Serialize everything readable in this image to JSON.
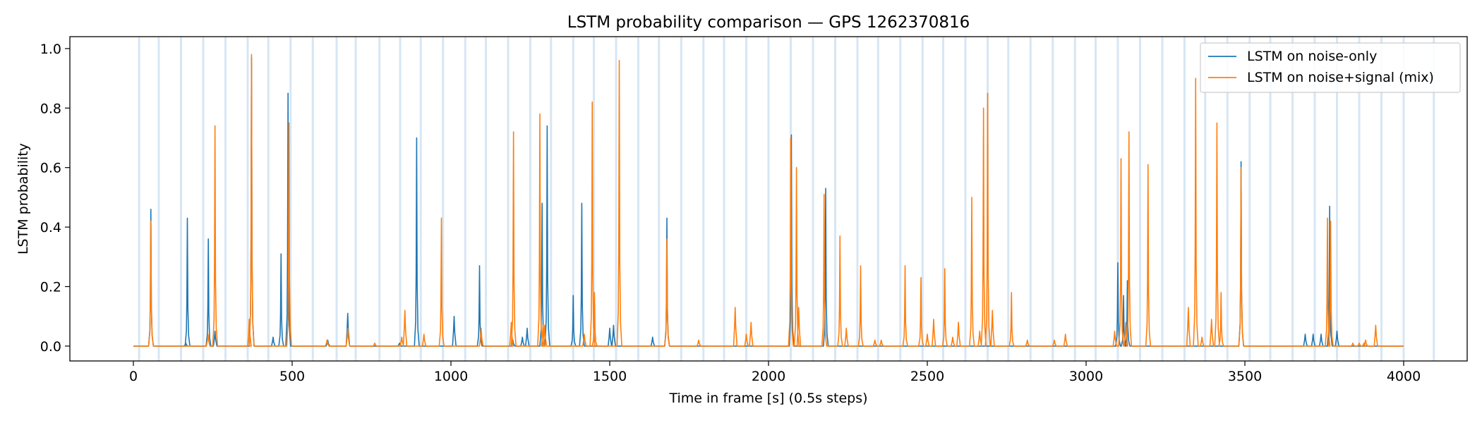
{
  "chart_data": {
    "type": "line",
    "title": "LSTM probability comparison — GPS 1262370816",
    "xlabel": "Time in frame [s] (0.5s steps)",
    "ylabel": "LSTM probability",
    "xlim": [
      -200,
      4200
    ],
    "ylim": [
      -0.05,
      1.04
    ],
    "xticks": [
      0,
      500,
      1000,
      1500,
      2000,
      2500,
      3000,
      3500,
      4000
    ],
    "yticks": [
      0.0,
      0.2,
      0.4,
      0.6,
      0.8,
      1.0
    ],
    "xtick_labels": [
      "0",
      "500",
      "1000",
      "1500",
      "2000",
      "2500",
      "3000",
      "3500",
      "4000"
    ],
    "ytick_labels": [
      "0.0",
      "0.2",
      "0.4",
      "0.6",
      "0.8",
      "1.0"
    ],
    "legend_position": "top-right",
    "background_bands_color": "#c6dbef",
    "background_bands": [
      18,
      80,
      150,
      220,
      290,
      360,
      425,
      495,
      565,
      640,
      700,
      775,
      840,
      905,
      975,
      1045,
      1110,
      1180,
      1250,
      1315,
      1385,
      1450,
      1520,
      1590,
      1655,
      1725,
      1795,
      1860,
      1930,
      2000,
      2070,
      2140,
      2210,
      2280,
      2345,
      2415,
      2485,
      2550,
      2620,
      2690,
      2755,
      2825,
      2895,
      2965,
      3030,
      3100,
      3170,
      3240,
      3310,
      3375,
      3445,
      3515,
      3580,
      3650,
      3720,
      3790,
      3860,
      3930,
      4000,
      4095
    ],
    "series": [
      {
        "name": "LSTM on noise-only",
        "color": "#1f77b4",
        "x_start": 0,
        "x_end": 4000,
        "peaks": [
          [
            55,
            0.46
          ],
          [
            165,
            0.01
          ],
          [
            170,
            0.43
          ],
          [
            236,
            0.36
          ],
          [
            257,
            0.05
          ],
          [
            372,
            0.97
          ],
          [
            440,
            0.03
          ],
          [
            465,
            0.31
          ],
          [
            487,
            0.85
          ],
          [
            612,
            0.02
          ],
          [
            675,
            0.11
          ],
          [
            838,
            0.01
          ],
          [
            892,
            0.7
          ],
          [
            1010,
            0.1
          ],
          [
            1090,
            0.27
          ],
          [
            1195,
            0.02
          ],
          [
            1225,
            0.03
          ],
          [
            1240,
            0.06
          ],
          [
            1287,
            0.48
          ],
          [
            1303,
            0.74
          ],
          [
            1385,
            0.17
          ],
          [
            1412,
            0.48
          ],
          [
            1500,
            0.06
          ],
          [
            1512,
            0.07
          ],
          [
            1635,
            0.03
          ],
          [
            1680,
            0.43
          ],
          [
            2072,
            0.71
          ],
          [
            2180,
            0.53
          ],
          [
            3100,
            0.28
          ],
          [
            3118,
            0.17
          ],
          [
            3130,
            0.22
          ],
          [
            3488,
            0.62
          ],
          [
            3690,
            0.04
          ],
          [
            3715,
            0.04
          ],
          [
            3740,
            0.04
          ],
          [
            3767,
            0.47
          ],
          [
            3790,
            0.05
          ]
        ]
      },
      {
        "name": "LSTM on noise+signal (mix)",
        "color": "#ff7f0e",
        "x_start": 0,
        "x_end": 4000,
        "peaks": [
          [
            55,
            0.42
          ],
          [
            235,
            0.04
          ],
          [
            257,
            0.74
          ],
          [
            365,
            0.09
          ],
          [
            372,
            0.98
          ],
          [
            490,
            0.75
          ],
          [
            610,
            0.02
          ],
          [
            675,
            0.06
          ],
          [
            760,
            0.01
          ],
          [
            845,
            0.03
          ],
          [
            855,
            0.12
          ],
          [
            915,
            0.04
          ],
          [
            970,
            0.43
          ],
          [
            1095,
            0.06
          ],
          [
            1190,
            0.08
          ],
          [
            1197,
            0.72
          ],
          [
            1280,
            0.78
          ],
          [
            1290,
            0.07
          ],
          [
            1295,
            0.07
          ],
          [
            1420,
            0.04
          ],
          [
            1445,
            0.82
          ],
          [
            1452,
            0.18
          ],
          [
            1530,
            0.96
          ],
          [
            1680,
            0.36
          ],
          [
            1780,
            0.02
          ],
          [
            1895,
            0.13
          ],
          [
            1930,
            0.04
          ],
          [
            1945,
            0.08
          ],
          [
            2070,
            0.7
          ],
          [
            2088,
            0.6
          ],
          [
            2095,
            0.13
          ],
          [
            2175,
            0.51
          ],
          [
            2225,
            0.37
          ],
          [
            2245,
            0.06
          ],
          [
            2290,
            0.27
          ],
          [
            2335,
            0.02
          ],
          [
            2355,
            0.02
          ],
          [
            2430,
            0.27
          ],
          [
            2480,
            0.23
          ],
          [
            2500,
            0.04
          ],
          [
            2520,
            0.09
          ],
          [
            2555,
            0.26
          ],
          [
            2580,
            0.03
          ],
          [
            2598,
            0.08
          ],
          [
            2640,
            0.5
          ],
          [
            2665,
            0.05
          ],
          [
            2677,
            0.8
          ],
          [
            2690,
            0.85
          ],
          [
            2705,
            0.12
          ],
          [
            2765,
            0.18
          ],
          [
            2815,
            0.02
          ],
          [
            2900,
            0.02
          ],
          [
            2935,
            0.04
          ],
          [
            3090,
            0.05
          ],
          [
            3110,
            0.63
          ],
          [
            3125,
            0.08
          ],
          [
            3135,
            0.72
          ],
          [
            3195,
            0.61
          ],
          [
            3322,
            0.13
          ],
          [
            3345,
            0.9
          ],
          [
            3365,
            0.03
          ],
          [
            3395,
            0.09
          ],
          [
            3412,
            0.75
          ],
          [
            3425,
            0.18
          ],
          [
            3488,
            0.6
          ],
          [
            3760,
            0.43
          ],
          [
            3770,
            0.42
          ],
          [
            3840,
            0.01
          ],
          [
            3860,
            0.01
          ],
          [
            3875,
            0.01
          ],
          [
            3880,
            0.02
          ],
          [
            3912,
            0.07
          ]
        ]
      }
    ]
  }
}
